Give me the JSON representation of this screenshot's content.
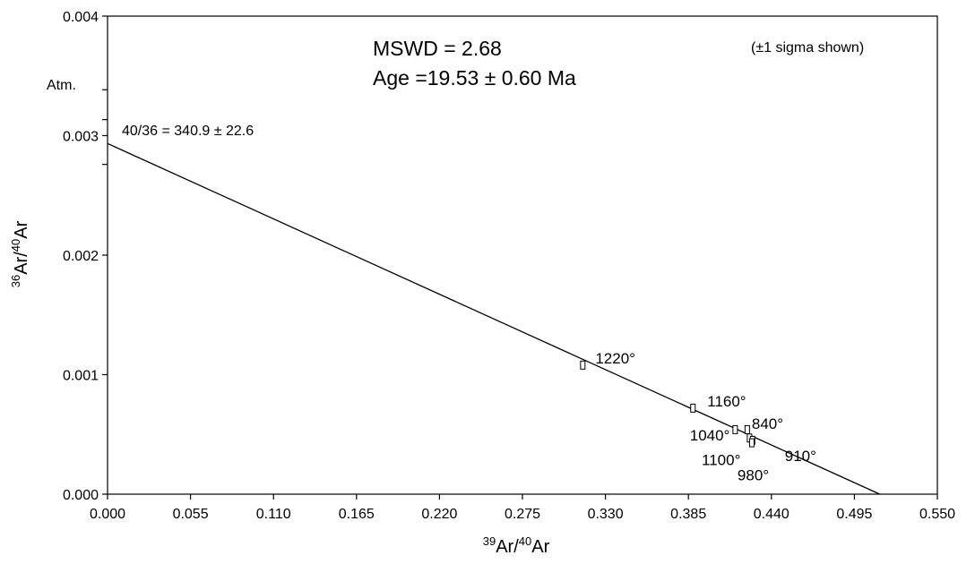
{
  "chart_data": {
    "type": "scatter",
    "xlabel": "³⁹Ar/⁴⁰Ar",
    "ylabel": "³⁶Ar/⁴⁰Ar",
    "xlim": [
      0,
      0.55
    ],
    "ylim": [
      0,
      0.004
    ],
    "x_ticks": [
      "0.000",
      "0.055",
      "0.110",
      "0.165",
      "0.220",
      "0.275",
      "0.330",
      "0.385",
      "0.440",
      "0.495",
      "0.550"
    ],
    "y_ticks": [
      "0.000",
      "0.001",
      "0.002",
      "0.003",
      "0.004"
    ],
    "y_tick_values": [
      0,
      0.001,
      0.002,
      0.003,
      0.004
    ],
    "points": [
      {
        "label": "1220°",
        "x": 0.315,
        "y": 0.00108
      },
      {
        "label": "1160°",
        "x": 0.388,
        "y": 0.00072
      },
      {
        "label": "1040°",
        "x": 0.416,
        "y": 0.00054
      },
      {
        "label": "840°",
        "x": 0.424,
        "y": 0.00054
      },
      {
        "label": "1100°",
        "x": 0.4255,
        "y": 0.00047
      },
      {
        "label": "910°",
        "x": 0.4275,
        "y": 0.00045
      },
      {
        "label": "980°",
        "x": 0.427,
        "y": 0.00043
      }
    ],
    "isochron": {
      "y_intercept": 0.002934,
      "x_intercept": 0.5118
    },
    "atm_value": 0.003384,
    "intercept_error_ticks": [
      0.003134,
      0.002759
    ],
    "annotations": {
      "mswd": "MSWD = 2.68",
      "age": "Age =19.53 ± 0.60 Ma",
      "sigma": "(±1 sigma shown)",
      "atm": "Atm.",
      "intercept": "40/36 = 340.9 ± 22.6"
    }
  }
}
